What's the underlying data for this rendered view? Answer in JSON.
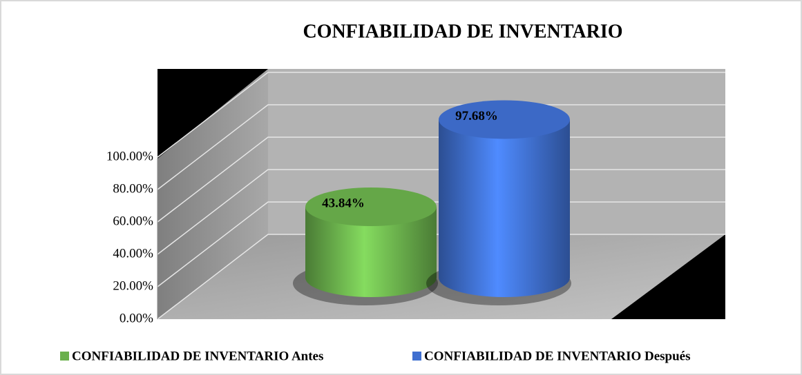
{
  "chart_data": {
    "type": "bar",
    "title": "CONFIABILIDAD DE INVENTARIO",
    "categories": [
      null
    ],
    "series": [
      {
        "name": "CONFIABILIDAD DE INVENTARIO Antes",
        "color": "#6ab04c",
        "values": [
          43.84
        ],
        "value_labels": [
          "43.84%"
        ]
      },
      {
        "name": "CONFIABILIDAD DE INVENTARIO Después",
        "color": "#3f6fd0",
        "values": [
          97.68
        ],
        "value_labels": [
          "97.68%"
        ]
      }
    ],
    "ylim": [
      0,
      100
    ],
    "yticks": [
      {
        "value": 0,
        "label": "0.00%"
      },
      {
        "value": 20,
        "label": "20.00%"
      },
      {
        "value": 40,
        "label": "40.00%"
      },
      {
        "value": 60,
        "label": "60.00%"
      },
      {
        "value": 80,
        "label": "80.00%"
      },
      {
        "value": 100,
        "label": "100.00%"
      }
    ],
    "grid": true,
    "legend": "bottom"
  }
}
